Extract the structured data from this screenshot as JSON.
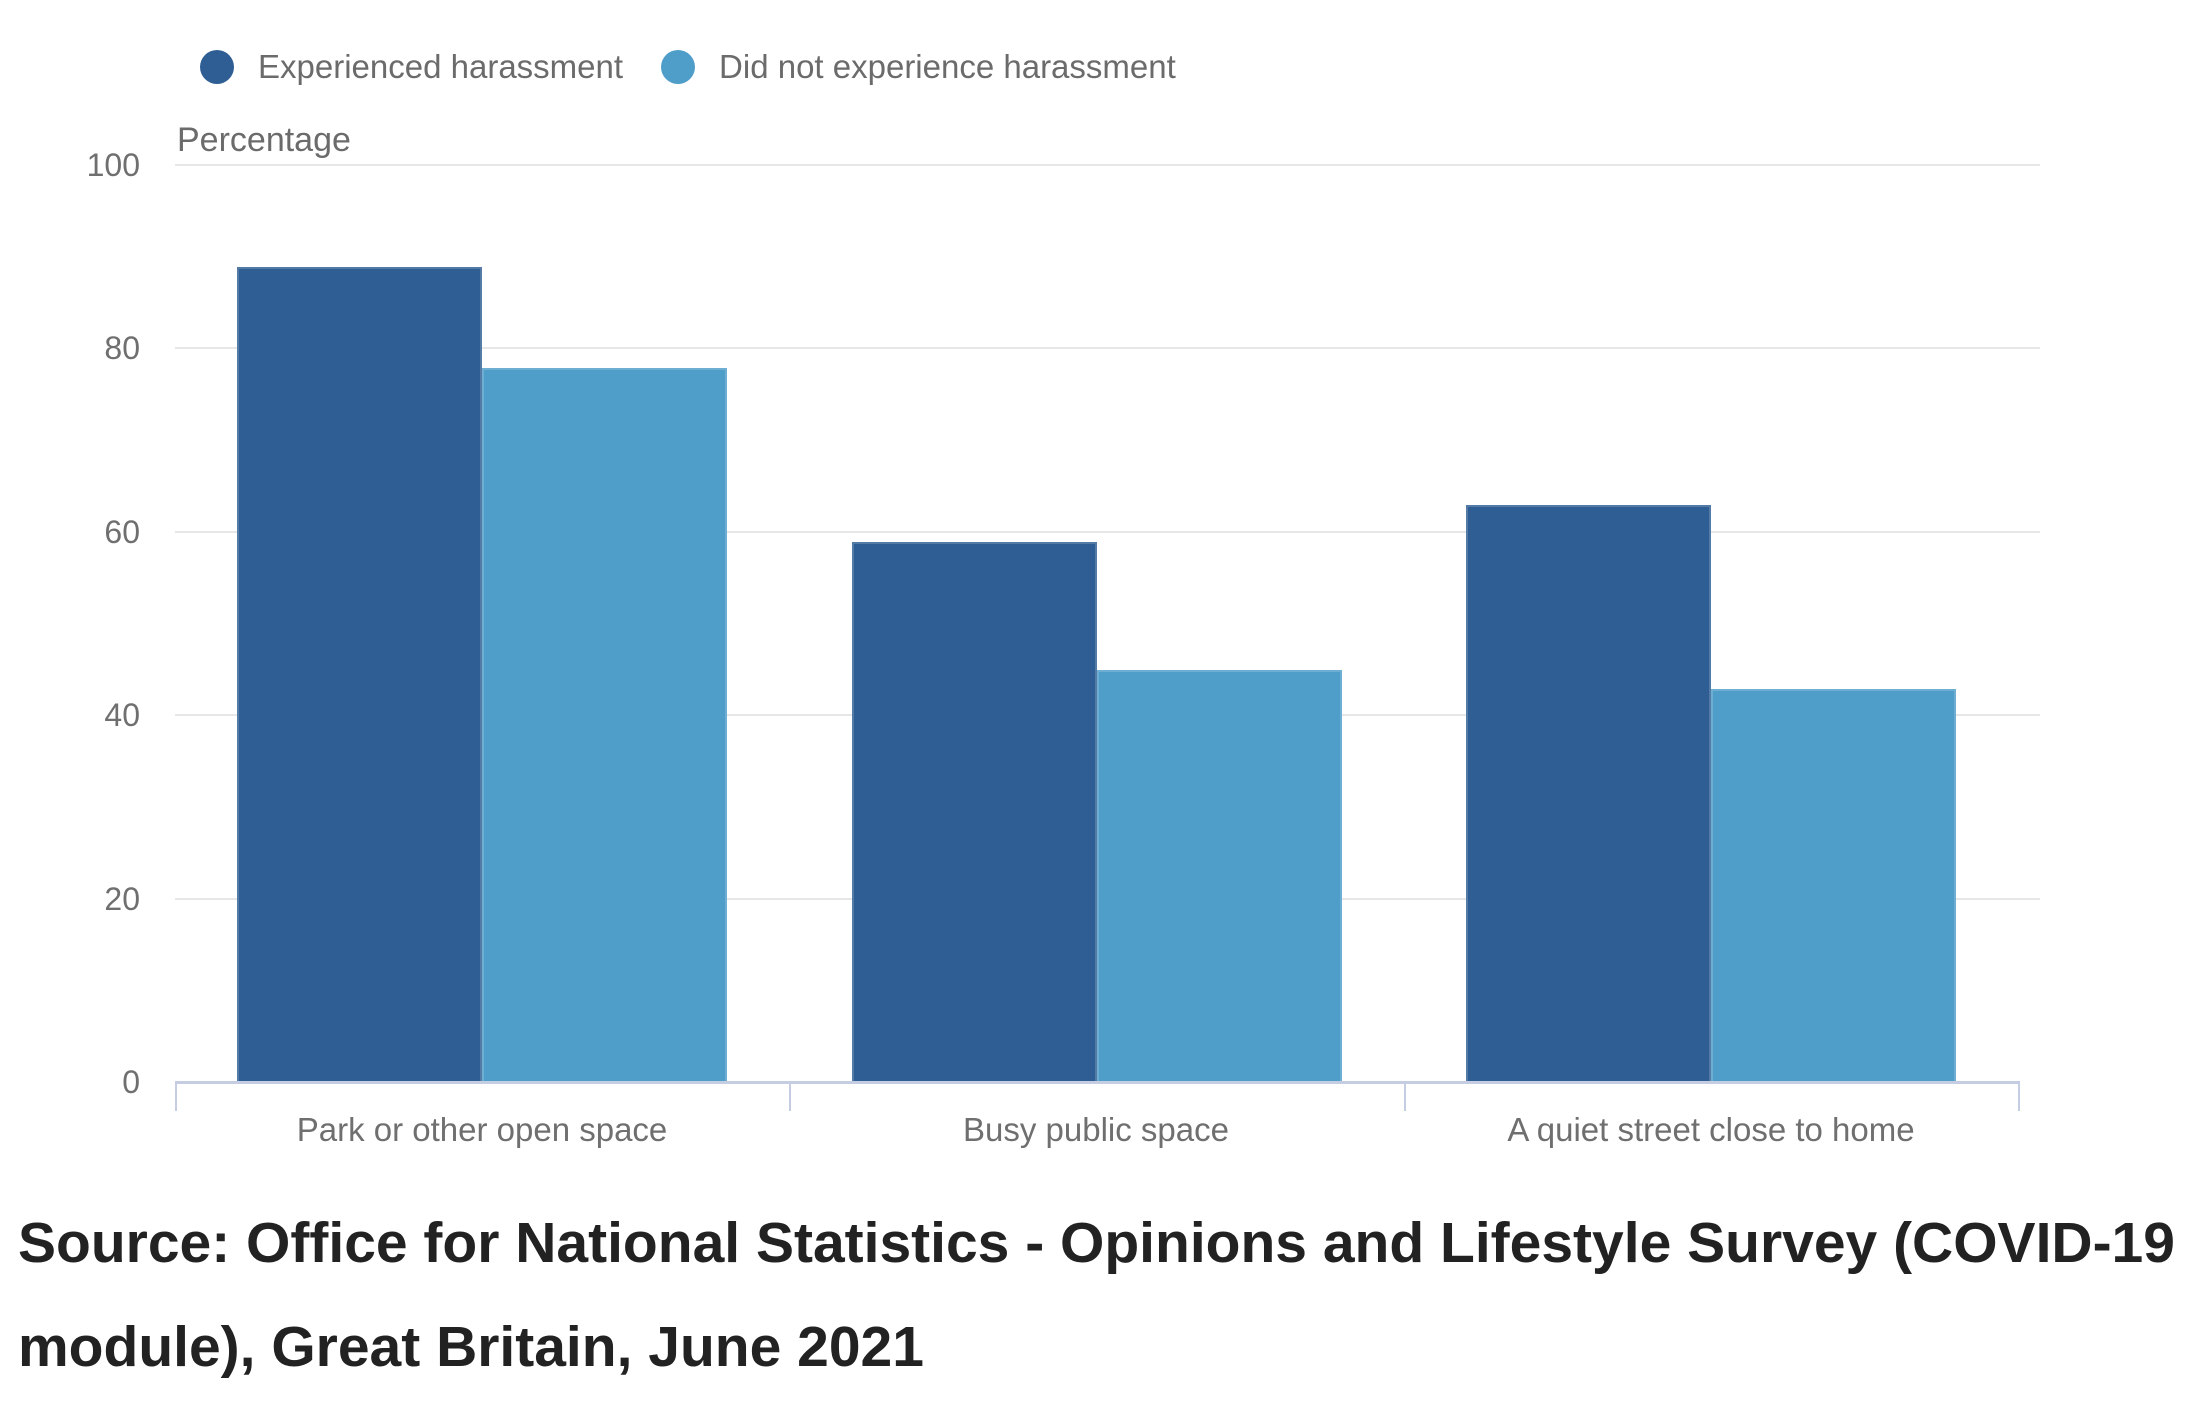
{
  "chart_data": {
    "type": "bar",
    "title": "",
    "categories": [
      "Park or other open space",
      "Busy public space",
      "A quiet street close to home"
    ],
    "series": [
      {
        "name": "Experienced harassment",
        "color": "#2e5e93",
        "values": [
          89,
          59,
          63
        ]
      },
      {
        "name": "Did not experience harassment",
        "color": "#4f9dc9",
        "values": [
          78,
          45,
          43
        ]
      }
    ],
    "xlabel": "",
    "ylabel": "Percentage",
    "ylim": [
      0,
      100
    ],
    "yticks": [
      0,
      20,
      40,
      60,
      80,
      100
    ],
    "grid": true,
    "legend_position": "top-left"
  },
  "colors": {
    "gridline": "#e7e7e7",
    "axis_frame": "#c5cde2",
    "tick_text": "#6f6f6f",
    "legend_text": "#6b6b6b",
    "source_text": "#222222"
  },
  "source_note": "Source: Office for National Statistics - Opinions and Lifestyle Survey (COVID-19 module), Great Britain, June 2021"
}
